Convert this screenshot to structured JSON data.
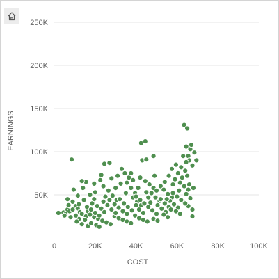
{
  "home_button": {
    "icon": "home-icon"
  },
  "chart_data": {
    "type": "scatter",
    "xlabel": "COST",
    "ylabel": "EARNINGS",
    "xlim": [
      0,
      100000
    ],
    "ylim": [
      0,
      250000
    ],
    "x_ticks": [
      0,
      20000,
      40000,
      60000,
      80000,
      100000
    ],
    "x_tick_labels": [
      "0",
      "20K",
      "40K",
      "60K",
      "80K",
      "100K"
    ],
    "y_ticks": [
      50000,
      100000,
      150000,
      200000,
      250000
    ],
    "y_tick_labels": [
      "50K",
      "100K",
      "150K",
      "200K",
      "250K"
    ],
    "grid": "horizontal",
    "point_color": "#4f8f4f",
    "point_stroke": "#ffffff",
    "points": [
      [
        2000,
        29000
      ],
      [
        4500,
        29500
      ],
      [
        5500,
        28000
      ],
      [
        5000,
        26000
      ],
      [
        6500,
        33000
      ],
      [
        7500,
        31000
      ],
      [
        8000,
        24000
      ],
      [
        6500,
        45000
      ],
      [
        8500,
        91000
      ],
      [
        9500,
        56000
      ],
      [
        9000,
        42000
      ],
      [
        10500,
        37000
      ],
      [
        11500,
        34000
      ],
      [
        12500,
        30000
      ],
      [
        13500,
        28000
      ],
      [
        12000,
        22000
      ],
      [
        15500,
        25000
      ],
      [
        11000,
        19000
      ],
      [
        13500,
        16000
      ],
      [
        16500,
        14000
      ],
      [
        18000,
        17000
      ],
      [
        20500,
        15000
      ],
      [
        22000,
        13000
      ],
      [
        14000,
        58000
      ],
      [
        15500,
        65000
      ],
      [
        17500,
        50000
      ],
      [
        19500,
        45000
      ],
      [
        18500,
        40000
      ],
      [
        21000,
        37000
      ],
      [
        23000,
        34000
      ],
      [
        24500,
        30000
      ],
      [
        16500,
        31000
      ],
      [
        17500,
        27000
      ],
      [
        19500,
        24000
      ],
      [
        21500,
        22000
      ],
      [
        23500,
        20000
      ],
      [
        25500,
        18000
      ],
      [
        27500,
        16000
      ],
      [
        22500,
        67000
      ],
      [
        24000,
        60000
      ],
      [
        24500,
        86000
      ],
      [
        27000,
        87000
      ],
      [
        26500,
        55000
      ],
      [
        28500,
        49000
      ],
      [
        30500,
        44000
      ],
      [
        29500,
        39000
      ],
      [
        31500,
        35000
      ],
      [
        33500,
        31000
      ],
      [
        35500,
        28000
      ],
      [
        29500,
        25000
      ],
      [
        31500,
        23000
      ],
      [
        33500,
        21000
      ],
      [
        35500,
        19000
      ],
      [
        37500,
        17000
      ],
      [
        33000,
        80000
      ],
      [
        34500,
        75000
      ],
      [
        36500,
        70000
      ],
      [
        35500,
        64000
      ],
      [
        37500,
        58000
      ],
      [
        39500,
        52000
      ],
      [
        38500,
        47000
      ],
      [
        40500,
        42000
      ],
      [
        42500,
        38000
      ],
      [
        41500,
        33000
      ],
      [
        43500,
        29000
      ],
      [
        39500,
        26000
      ],
      [
        41500,
        23000
      ],
      [
        43500,
        21000
      ],
      [
        45500,
        19000
      ],
      [
        42000,
        70000
      ],
      [
        44500,
        66000
      ],
      [
        43000,
        90000
      ],
      [
        45000,
        91000
      ],
      [
        42500,
        110000
      ],
      [
        44500,
        112000
      ],
      [
        46500,
        62000
      ],
      [
        48500,
        58000
      ],
      [
        47500,
        52000
      ],
      [
        49500,
        47000
      ],
      [
        51500,
        43000
      ],
      [
        50500,
        38000
      ],
      [
        52500,
        34000
      ],
      [
        54500,
        30000
      ],
      [
        53500,
        27000
      ],
      [
        55500,
        24000
      ],
      [
        48500,
        22000
      ],
      [
        50500,
        20000
      ],
      [
        48500,
        95000
      ],
      [
        52000,
        60000
      ],
      [
        54000,
        65000
      ],
      [
        53500,
        56000
      ],
      [
        55500,
        51000
      ],
      [
        57500,
        47000
      ],
      [
        56500,
        43000
      ],
      [
        58500,
        39000
      ],
      [
        60500,
        35000
      ],
      [
        59500,
        31000
      ],
      [
        61500,
        28000
      ],
      [
        57500,
        80000
      ],
      [
        59500,
        85000
      ],
      [
        60500,
        75000
      ],
      [
        62500,
        70000
      ],
      [
        61500,
        64000
      ],
      [
        63500,
        60000
      ],
      [
        65500,
        56000
      ],
      [
        64500,
        51000
      ],
      [
        66500,
        46000
      ],
      [
        63500,
        41000
      ],
      [
        65500,
        37000
      ],
      [
        67500,
        33000
      ],
      [
        63500,
        131000
      ],
      [
        65000,
        127000
      ],
      [
        64500,
        106000
      ],
      [
        66500,
        103000
      ],
      [
        65500,
        95000
      ],
      [
        67000,
        108000
      ],
      [
        68500,
        99000
      ],
      [
        69500,
        90000
      ],
      [
        67500,
        84000
      ],
      [
        66000,
        90000
      ],
      [
        63000,
        95000
      ],
      [
        64500,
        88000
      ],
      [
        67500,
        25000
      ],
      [
        13500,
        66000
      ],
      [
        19500,
        63000
      ],
      [
        28000,
        69000
      ],
      [
        31000,
        72000
      ],
      [
        37500,
        75000
      ],
      [
        41000,
        58000
      ],
      [
        46000,
        47000
      ],
      [
        50000,
        55000
      ],
      [
        56000,
        72000
      ],
      [
        58000,
        62000
      ],
      [
        10500,
        26000
      ],
      [
        12000,
        39000
      ],
      [
        14500,
        44000
      ],
      [
        16000,
        36000
      ],
      [
        18000,
        33000
      ],
      [
        20000,
        29000
      ],
      [
        22000,
        26000
      ],
      [
        24000,
        42000
      ],
      [
        26000,
        38000
      ],
      [
        28000,
        33000
      ],
      [
        30000,
        29000
      ],
      [
        32000,
        45000
      ],
      [
        34000,
        40000
      ],
      [
        36000,
        36000
      ],
      [
        38000,
        32000
      ],
      [
        40000,
        48000
      ],
      [
        42000,
        44000
      ],
      [
        44000,
        40000
      ],
      [
        46000,
        36000
      ],
      [
        48000,
        32000
      ],
      [
        50000,
        28000
      ],
      [
        52000,
        45000
      ],
      [
        54000,
        40000
      ],
      [
        56000,
        36000
      ],
      [
        58000,
        52000
      ],
      [
        60000,
        48000
      ],
      [
        62000,
        44000
      ],
      [
        64000,
        40000
      ],
      [
        66000,
        62000
      ],
      [
        68000,
        58000
      ],
      [
        25000,
        48000
      ],
      [
        27000,
        44000
      ],
      [
        35000,
        52000
      ],
      [
        45000,
        53000
      ],
      [
        55000,
        45000
      ],
      [
        61000,
        55000
      ],
      [
        20000,
        53000
      ],
      [
        30000,
        58000
      ],
      [
        40000,
        38000
      ],
      [
        47000,
        41000
      ],
      [
        57000,
        33000
      ],
      [
        65000,
        72000
      ],
      [
        11500,
        49000
      ],
      [
        15000,
        21000
      ],
      [
        9000,
        33000
      ],
      [
        7000,
        38000
      ],
      [
        23000,
        73000
      ],
      [
        32500,
        63000
      ],
      [
        38500,
        67000
      ],
      [
        49000,
        72000
      ],
      [
        59000,
        68000
      ],
      [
        62000,
        82000
      ],
      [
        64000,
        78000
      ]
    ]
  }
}
